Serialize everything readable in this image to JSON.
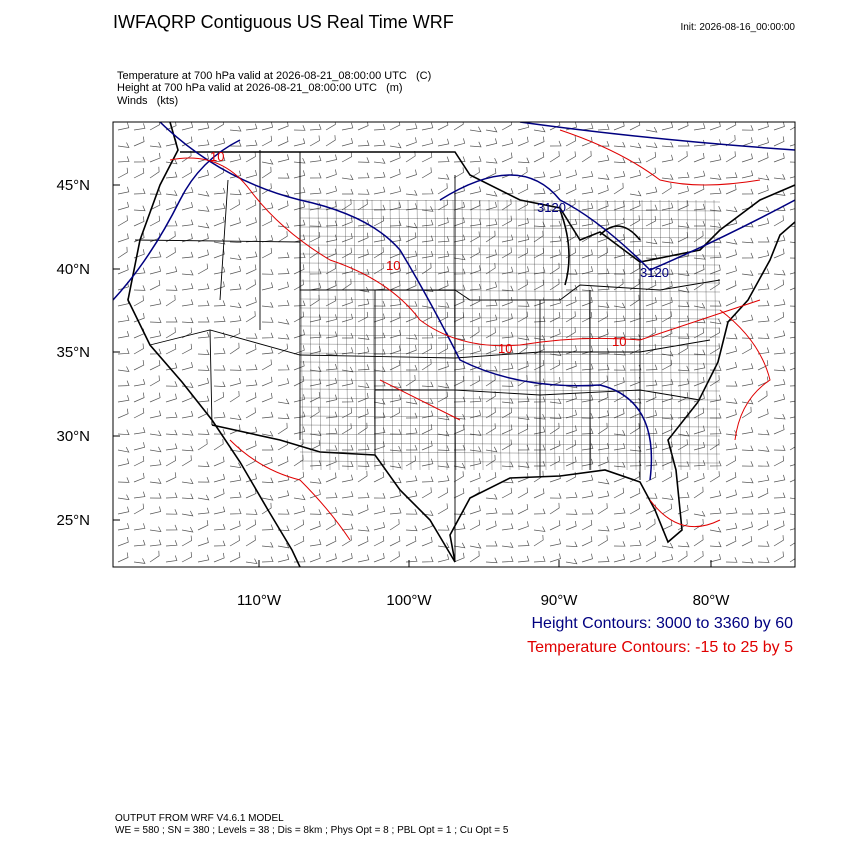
{
  "header": {
    "title": "IWFAQRP Contiguous US Real Time WRF",
    "init": "Init: 2026-08-16_00:00:00"
  },
  "fields": [
    "Temperature at 700 hPa valid at 2026-08-21_08:00:00 UTC   (C)",
    "Height at 700 hPa valid at 2026-08-21_08:00:00 UTC   (m)",
    "Winds   (kts)"
  ],
  "map": {
    "lat_labels": [
      "45°N",
      "40°N",
      "35°N",
      "30°N",
      "25°N"
    ],
    "lon_labels": [
      "110°W",
      "100°W",
      "90°W",
      "80°W"
    ],
    "contour_labels": [
      "10",
      "10",
      "10",
      "10",
      "3120",
      "3120"
    ]
  },
  "legend": [
    "Height Contours: 3000 to 3360 by 60",
    "Temperature Contours: -15 to 25 by 5"
  ],
  "footer": [
    "OUTPUT FROM WRF V4.6.1 MODEL",
    "WE = 580 ; SN = 380 ; Levels = 38 ; Dis = 8km ; Phys Opt = 8 ; PBL Opt = 1 ; Cu Opt = 5"
  ]
}
